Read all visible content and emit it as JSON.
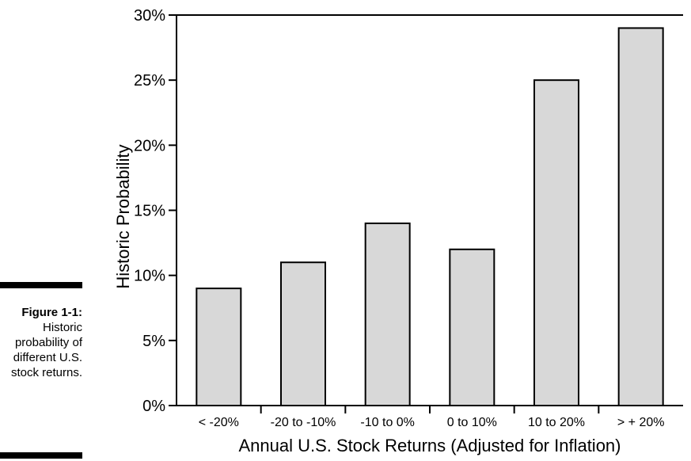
{
  "caption": {
    "label": "Figure 1-1:",
    "text": "Historic probability of different U.S. stock returns."
  },
  "chart_data": {
    "type": "bar",
    "title": "",
    "xlabel": "Annual U.S. Stock Returns (Adjusted for Inflation)",
    "ylabel": "Historic Probability",
    "categories": [
      "< -20%",
      "-20 to -10%",
      "-10 to 0%",
      "0 to 10%",
      "10 to 20%",
      "> + 20%"
    ],
    "values": [
      9,
      11,
      14,
      12,
      25,
      29
    ],
    "ylim": [
      0,
      30
    ],
    "yticks": [
      "0%",
      "5%",
      "10%",
      "15%",
      "20%",
      "25%",
      "30%"
    ],
    "grid": false,
    "legend": "none",
    "bar_color": "#d8d8d8",
    "edge_color": "#000000"
  }
}
